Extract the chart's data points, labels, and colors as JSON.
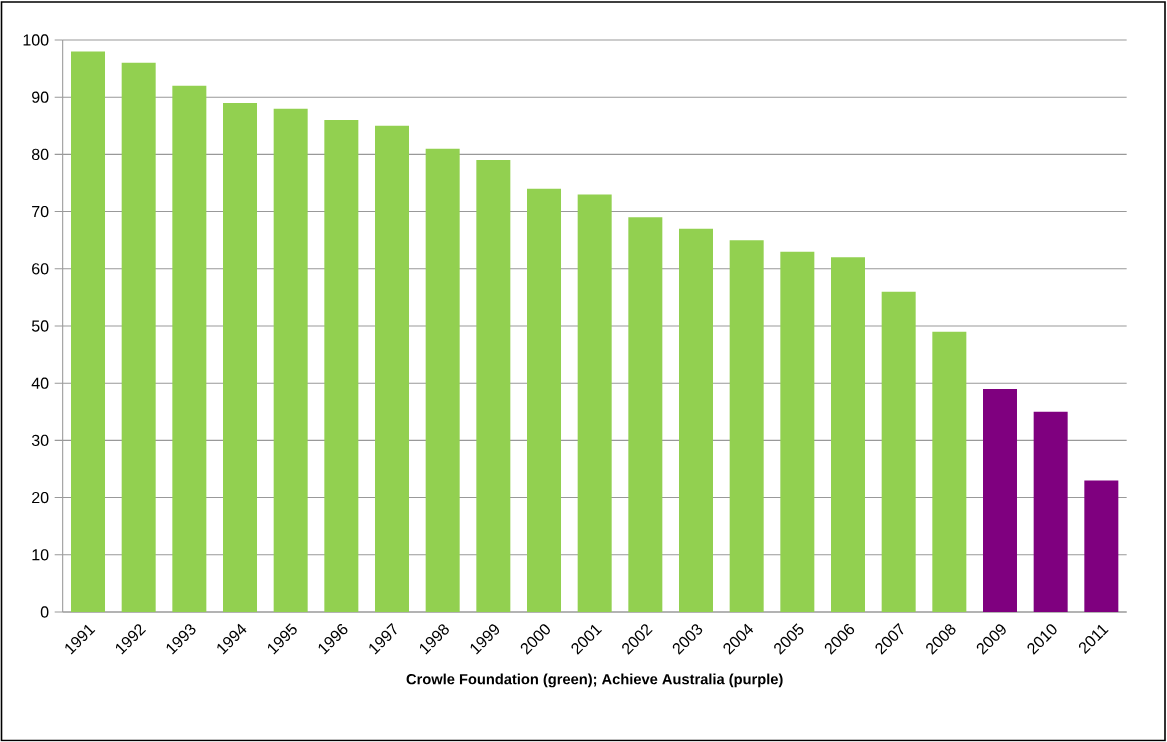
{
  "chart_data": {
    "type": "bar",
    "xlabel": "Crowle Foundation (green); Achieve Australia (purple)",
    "categories": [
      "1991",
      "1992",
      "1993",
      "1994",
      "1995",
      "1996",
      "1997",
      "1998",
      "1999",
      "2000",
      "2001",
      "2002",
      "2003",
      "2004",
      "2005",
      "2006",
      "2007",
      "2008",
      "2009",
      "2010",
      "2011"
    ],
    "values": [
      98,
      96,
      92,
      89,
      88,
      86,
      85,
      81,
      79,
      74,
      73,
      69,
      67,
      65,
      63,
      62,
      56,
      49,
      39,
      35,
      23
    ],
    "colors": [
      "#92d050",
      "#92d050",
      "#92d050",
      "#92d050",
      "#92d050",
      "#92d050",
      "#92d050",
      "#92d050",
      "#92d050",
      "#92d050",
      "#92d050",
      "#92d050",
      "#92d050",
      "#92d050",
      "#92d050",
      "#92d050",
      "#92d050",
      "#92d050",
      "#7f007f",
      "#7f007f",
      "#7f007f"
    ],
    "ylim": [
      0,
      100
    ],
    "yticks": [
      0,
      10,
      20,
      30,
      40,
      50,
      60,
      70,
      80,
      90,
      100
    ],
    "grid": "y"
  }
}
